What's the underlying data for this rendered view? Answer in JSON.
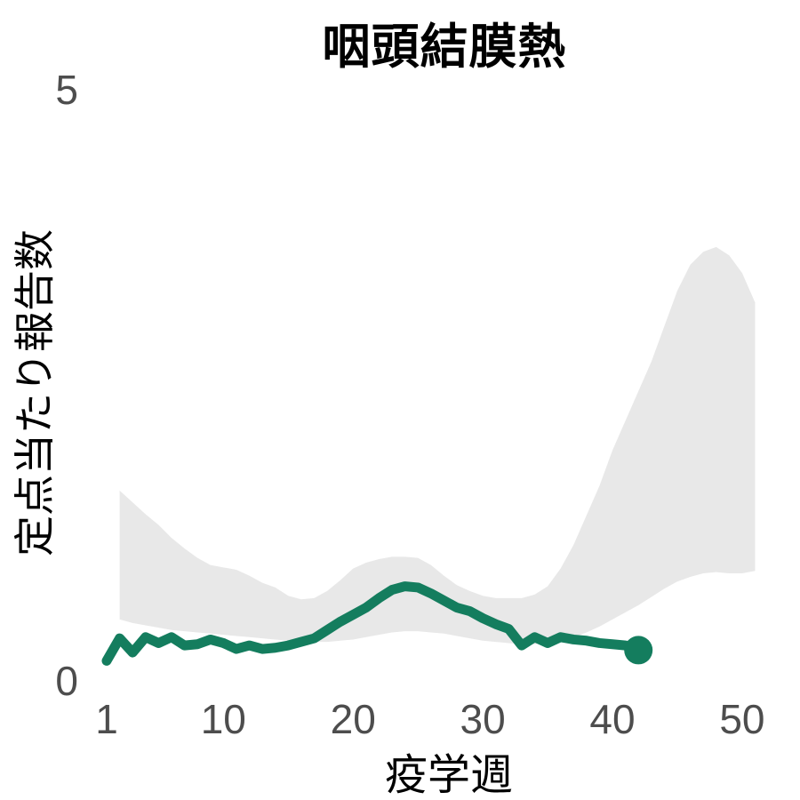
{
  "chart": {
    "title": "咽頭結膜熱",
    "xlabel": "疫学週",
    "ylabel": "定点当たり報告数",
    "colors": {
      "line": "#147d5e",
      "band": "#e8e8e8",
      "tick_text": "#4d4d4d",
      "title_text": "#000000"
    }
  },
  "chart_data": {
    "type": "line",
    "title": "咽頭結膜熱",
    "xlabel": "疫学週",
    "ylabel": "定点当たり報告数",
    "xlim": [
      0,
      53
    ],
    "ylim": [
      0,
      5
    ],
    "grid": false,
    "legend": "none",
    "x_ticks": [
      1,
      10,
      20,
      30,
      40,
      50
    ],
    "y_ticks": [
      0,
      5
    ],
    "y_tick_labels": [
      "0",
      "5"
    ],
    "series": [
      {
        "name": "weekly-reports-current",
        "kind": "line",
        "color": "#147d5e",
        "end_marker": true,
        "x": [
          1,
          2,
          3,
          4,
          5,
          6,
          7,
          8,
          9,
          10,
          11,
          12,
          13,
          14,
          15,
          16,
          17,
          18,
          19,
          20,
          21,
          22,
          23,
          24,
          25,
          26,
          27,
          28,
          29,
          30,
          31,
          32,
          33,
          34,
          35,
          36,
          37,
          38,
          39,
          40,
          41,
          42
        ],
        "values": [
          0.17,
          0.36,
          0.24,
          0.37,
          0.32,
          0.37,
          0.3,
          0.31,
          0.35,
          0.32,
          0.27,
          0.3,
          0.27,
          0.28,
          0.3,
          0.33,
          0.36,
          0.43,
          0.5,
          0.56,
          0.62,
          0.7,
          0.77,
          0.8,
          0.79,
          0.74,
          0.68,
          0.62,
          0.59,
          0.53,
          0.48,
          0.44,
          0.3,
          0.37,
          0.32,
          0.37,
          0.35,
          0.34,
          0.32,
          0.31,
          0.3,
          0.26
        ]
      },
      {
        "name": "historical-range-band",
        "kind": "band",
        "color": "#e8e8e8",
        "x": [
          2,
          3,
          4,
          5,
          6,
          7,
          8,
          9,
          10,
          11,
          12,
          13,
          14,
          15,
          16,
          17,
          18,
          19,
          20,
          21,
          22,
          23,
          24,
          25,
          26,
          27,
          28,
          29,
          30,
          31,
          32,
          33,
          34,
          35,
          36,
          37,
          38,
          39,
          40,
          41,
          42,
          43,
          44,
          45,
          46,
          47,
          48,
          49,
          50,
          51
        ],
        "upper": [
          1.61,
          1.51,
          1.41,
          1.32,
          1.21,
          1.12,
          1.04,
          0.98,
          0.96,
          0.94,
          0.89,
          0.83,
          0.79,
          0.72,
          0.69,
          0.7,
          0.76,
          0.85,
          0.95,
          1.0,
          1.03,
          1.05,
          1.05,
          1.04,
          0.98,
          0.89,
          0.81,
          0.76,
          0.72,
          0.7,
          0.7,
          0.7,
          0.73,
          0.8,
          0.95,
          1.15,
          1.4,
          1.65,
          1.95,
          2.2,
          2.45,
          2.7,
          3.0,
          3.3,
          3.52,
          3.63,
          3.67,
          3.6,
          3.45,
          3.2
        ],
        "lower": [
          0.52,
          0.49,
          0.47,
          0.45,
          0.43,
          0.42,
          0.41,
          0.4,
          0.39,
          0.38,
          0.37,
          0.36,
          0.35,
          0.34,
          0.33,
          0.33,
          0.33,
          0.34,
          0.35,
          0.37,
          0.39,
          0.41,
          0.42,
          0.42,
          0.41,
          0.4,
          0.38,
          0.36,
          0.34,
          0.33,
          0.32,
          0.31,
          0.31,
          0.32,
          0.34,
          0.37,
          0.41,
          0.46,
          0.52,
          0.58,
          0.64,
          0.71,
          0.78,
          0.84,
          0.88,
          0.91,
          0.92,
          0.91,
          0.91,
          0.93
        ]
      }
    ]
  }
}
